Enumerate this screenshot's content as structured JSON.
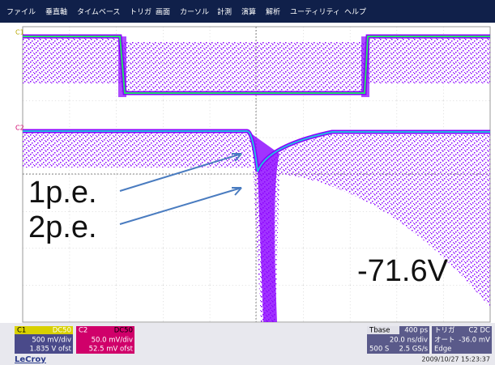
{
  "menu": [
    "ファイル",
    "垂直軸",
    "タイムベース",
    "トリガ",
    "画面",
    "カーソル",
    "計測",
    "演算",
    "解析",
    "ユーティリティ",
    "ヘルプ"
  ],
  "channels": {
    "c1_marker": "C1",
    "c2_marker": "C2"
  },
  "annotations": [
    "1p.e.",
    "2p.e.",
    "-71.6V"
  ],
  "status": {
    "c1": {
      "label": "C1",
      "coupling": "DC50",
      "scale": "500 mV/div",
      "offset": "1.835 V ofst"
    },
    "c2": {
      "label": "C2",
      "coupling": "DC50",
      "scale": "50.0 mV/div",
      "offset": "52.5 mV ofst"
    },
    "timebase": {
      "label": "Tbase",
      "delay": "400 ps",
      "scale": "20.0 ns/div",
      "points": "500 S",
      "rate": "2.5 GS/s"
    },
    "trigger": {
      "label": "トリガ",
      "source": "C2 DC",
      "mode": "オート",
      "level": "-36.0 mV",
      "type": "Edge"
    }
  },
  "brand": "LeCroy",
  "timestamp": "2009/10/27 15:23:37"
}
